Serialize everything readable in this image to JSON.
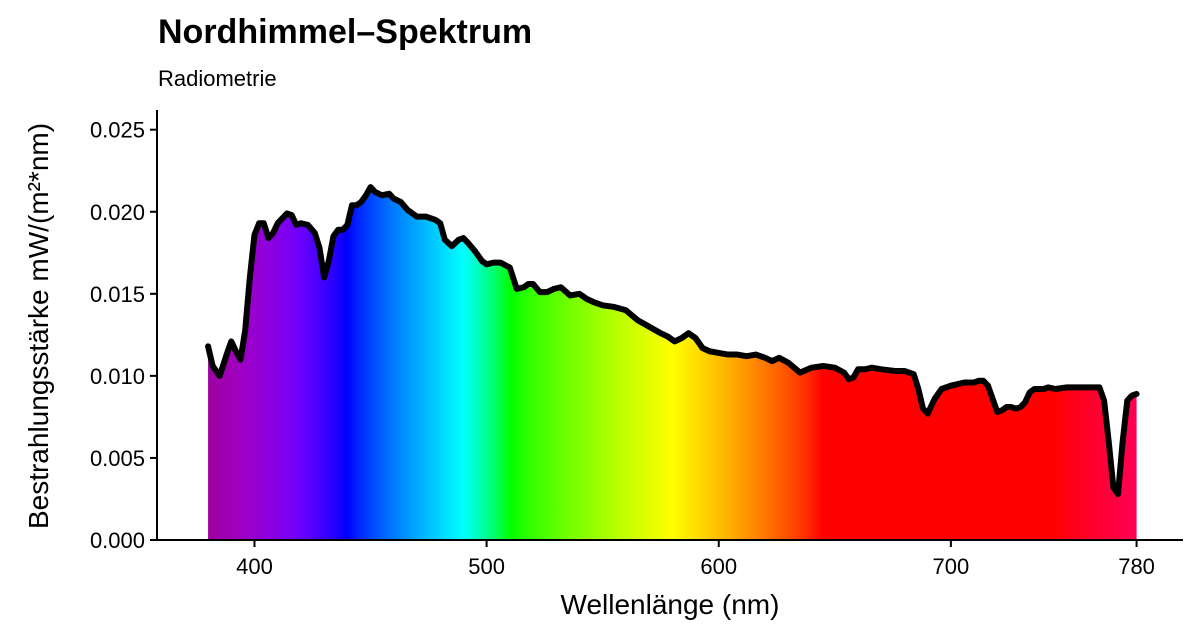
{
  "chart_data": {
    "type": "area",
    "title": "Nordhimmel–Spektrum",
    "subtitle": "Radiometrie",
    "xlabel": "Wellenlänge (nm)",
    "ylabel": "Bestrahlungsstärke  mW/(m²*nm)",
    "xlim": [
      358,
      800
    ],
    "ylim": [
      0,
      0.0262
    ],
    "x_ticks": [
      {
        "value": 400,
        "label": "400"
      },
      {
        "value": 500,
        "label": "500"
      },
      {
        "value": 600,
        "label": "600"
      },
      {
        "value": 700,
        "label": "700"
      },
      {
        "value": 780,
        "label": "780"
      }
    ],
    "y_ticks": [
      {
        "value": 0.0,
        "label": "0.000"
      },
      {
        "value": 0.005,
        "label": "0.005"
      },
      {
        "value": 0.01,
        "label": "0.010"
      },
      {
        "value": 0.015,
        "label": "0.015"
      },
      {
        "value": 0.02,
        "label": "0.020"
      },
      {
        "value": 0.025,
        "label": "0.025"
      }
    ],
    "grid": false,
    "fill": "visible spectrum colors by wavelength",
    "line_color": "#000000",
    "series": [
      {
        "x": [
          380,
          382,
          385,
          388,
          390,
          392,
          394,
          396,
          398,
          400,
          402,
          404,
          406,
          408,
          410,
          412,
          414,
          416,
          418,
          420,
          423,
          426,
          428,
          430,
          432,
          434,
          436,
          438,
          440,
          442,
          444,
          446,
          448,
          450,
          452,
          455,
          458,
          460,
          463,
          466,
          470,
          474,
          478,
          480,
          482,
          485,
          488,
          490,
          492,
          495,
          498,
          500,
          503,
          506,
          510,
          513,
          516,
          518,
          520,
          523,
          526,
          529,
          532,
          536,
          540,
          543,
          546,
          550,
          555,
          560,
          565,
          570,
          575,
          578,
          581,
          584,
          587,
          590,
          593,
          596,
          600,
          604,
          608,
          612,
          616,
          620,
          623,
          626,
          630,
          635,
          640,
          645,
          650,
          654,
          656,
          658,
          660,
          663,
          666,
          670,
          676,
          680,
          684,
          686,
          688,
          690,
          693,
          696,
          700,
          703,
          706,
          710,
          712,
          714,
          716,
          718,
          720,
          722,
          724,
          726,
          728,
          730,
          732,
          734,
          736,
          738,
          740,
          742,
          745,
          750,
          755,
          760,
          764,
          766,
          768,
          770,
          772,
          774,
          776,
          778,
          780
        ],
        "y": [
          0.0118,
          0.0106,
          0.01,
          0.0113,
          0.0121,
          0.0115,
          0.011,
          0.0128,
          0.016,
          0.0186,
          0.0193,
          0.0193,
          0.0184,
          0.0187,
          0.0193,
          0.0196,
          0.0199,
          0.0198,
          0.0192,
          0.0193,
          0.0192,
          0.0187,
          0.0178,
          0.016,
          0.017,
          0.0185,
          0.0189,
          0.0189,
          0.0192,
          0.0204,
          0.0204,
          0.0206,
          0.021,
          0.0215,
          0.0212,
          0.021,
          0.0211,
          0.0208,
          0.0206,
          0.0201,
          0.0197,
          0.0197,
          0.0195,
          0.0193,
          0.0183,
          0.0179,
          0.0183,
          0.0184,
          0.0181,
          0.0176,
          0.017,
          0.0168,
          0.0169,
          0.0169,
          0.0166,
          0.0153,
          0.0154,
          0.0156,
          0.0156,
          0.0151,
          0.0151,
          0.0153,
          0.0154,
          0.0149,
          0.015,
          0.0147,
          0.0145,
          0.0143,
          0.0142,
          0.014,
          0.0134,
          0.013,
          0.0126,
          0.0124,
          0.0121,
          0.0123,
          0.0126,
          0.0123,
          0.0117,
          0.0115,
          0.0114,
          0.0113,
          0.0113,
          0.0112,
          0.0113,
          0.0111,
          0.0109,
          0.0111,
          0.0108,
          0.0102,
          0.0105,
          0.0106,
          0.0105,
          0.0102,
          0.0098,
          0.0099,
          0.0104,
          0.0104,
          0.0105,
          0.0104,
          0.0103,
          0.0103,
          0.0101,
          0.0092,
          0.008,
          0.0077,
          0.0086,
          0.0092,
          0.0094,
          0.0095,
          0.0096,
          0.0096,
          0.0097,
          0.0097,
          0.0094,
          0.0086,
          0.0078,
          0.0079,
          0.0081,
          0.0081,
          0.008,
          0.0081,
          0.0084,
          0.009,
          0.0092,
          0.0092,
          0.0092,
          0.0093,
          0.0092,
          0.0093,
          0.0093,
          0.0093,
          0.0093,
          0.0085,
          0.006,
          0.0032,
          0.0028,
          0.006,
          0.0085,
          0.0088,
          0.0089
        ]
      }
    ]
  }
}
